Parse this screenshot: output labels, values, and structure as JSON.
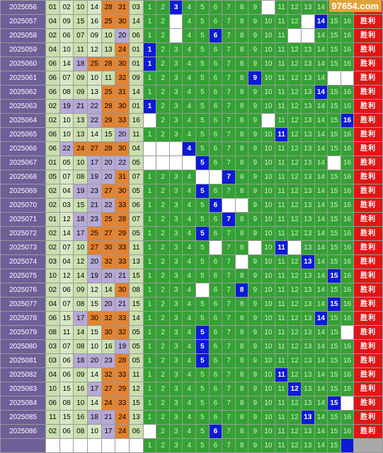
{
  "watermark": "97654.com",
  "result_label": "胜利",
  "miss_grid": [
    1,
    2,
    3,
    4,
    5,
    6,
    7,
    8,
    9,
    10,
    11,
    12,
    13,
    14,
    15,
    16
  ],
  "rows": [
    {
      "issue": "2025056",
      "nums": [
        "01",
        "02",
        "10",
        "14",
        "28",
        "31"
      ],
      "blue": "03",
      "hit": 3,
      "blanks": [
        10
      ]
    },
    {
      "issue": "2025057",
      "nums": [
        "04",
        "09",
        "15",
        "16",
        "25",
        "30"
      ],
      "blue": "14",
      "hit": 14,
      "blanks": [
        3,
        13
      ]
    },
    {
      "issue": "2025058",
      "nums": [
        "02",
        "06",
        "07",
        "09",
        "10",
        "20"
      ],
      "blue": "06",
      "hit": 6,
      "blanks": [
        3,
        12,
        13
      ]
    },
    {
      "issue": "2025059",
      "nums": [
        "04",
        "10",
        "11",
        "12",
        "13",
        "24"
      ],
      "blue": "01",
      "hit": 1,
      "blanks": []
    },
    {
      "issue": "2025060",
      "nums": [
        "06",
        "14",
        "18",
        "25",
        "28",
        "30"
      ],
      "blue": "01",
      "hit": 1,
      "blanks": []
    },
    {
      "issue": "2025061",
      "nums": [
        "06",
        "07",
        "09",
        "10",
        "11",
        "32"
      ],
      "blue": "09",
      "hit": 9,
      "blanks": [
        15,
        16
      ]
    },
    {
      "issue": "2025062",
      "nums": [
        "06",
        "08",
        "09",
        "13",
        "25",
        "31"
      ],
      "blue": "14",
      "hit": 14,
      "blanks": []
    },
    {
      "issue": "2025063",
      "nums": [
        "02",
        "19",
        "21",
        "22",
        "28",
        "30"
      ],
      "blue": "01",
      "hit": 1,
      "blanks": []
    },
    {
      "issue": "2025064",
      "nums": [
        "02",
        "10",
        "13",
        "22",
        "29",
        "33"
      ],
      "blue": "16",
      "hit": 16,
      "blanks": [
        1,
        10
      ]
    },
    {
      "issue": "2025065",
      "nums": [
        "06",
        "10",
        "13",
        "14",
        "15",
        "20"
      ],
      "blue": "11",
      "hit": 11,
      "blanks": []
    },
    {
      "issue": "2025066",
      "nums": [
        "06",
        "22",
        "24",
        "27",
        "28",
        "30"
      ],
      "blue": "04",
      "hit": 4,
      "blanks": [
        1,
        2,
        3
      ]
    },
    {
      "issue": "2025067",
      "nums": [
        "01",
        "05",
        "10",
        "17",
        "20",
        "22"
      ],
      "blue": "05",
      "hit": 5,
      "blanks": [
        1,
        2,
        3,
        4,
        15
      ]
    },
    {
      "issue": "2025068",
      "nums": [
        "05",
        "07",
        "08",
        "19",
        "20",
        "31"
      ],
      "blue": "07",
      "hit": 7,
      "blanks": [
        5,
        6
      ]
    },
    {
      "issue": "2025069",
      "nums": [
        "02",
        "04",
        "19",
        "23",
        "27",
        "30"
      ],
      "blue": "05",
      "hit": 5,
      "blanks": []
    },
    {
      "issue": "2025070",
      "nums": [
        "02",
        "03",
        "15",
        "21",
        "22",
        "33"
      ],
      "blue": "06",
      "hit": 6,
      "blanks": [
        7,
        8
      ]
    },
    {
      "issue": "2025071",
      "nums": [
        "01",
        "12",
        "18",
        "23",
        "25",
        "28"
      ],
      "blue": "07",
      "hit": 7,
      "blanks": []
    },
    {
      "issue": "2025072",
      "nums": [
        "02",
        "14",
        "17",
        "25",
        "27",
        "29"
      ],
      "blue": "05",
      "hit": 5,
      "blanks": []
    },
    {
      "issue": "2025073",
      "nums": [
        "02",
        "07",
        "10",
        "27",
        "30",
        "33"
      ],
      "blue": "11",
      "hit": 11,
      "blanks": [
        6,
        9,
        12
      ]
    },
    {
      "issue": "2025074",
      "nums": [
        "03",
        "04",
        "12",
        "20",
        "32",
        "33"
      ],
      "blue": "13",
      "hit": 13,
      "blanks": [
        8
      ]
    },
    {
      "issue": "2025075",
      "nums": [
        "10",
        "12",
        "14",
        "19",
        "20",
        "21"
      ],
      "blue": "15",
      "hit": 15,
      "blanks": []
    },
    {
      "issue": "2025076",
      "nums": [
        "02",
        "06",
        "09",
        "12",
        "14",
        "30"
      ],
      "blue": "08",
      "hit": 8,
      "blanks": [
        5
      ]
    },
    {
      "issue": "2025077",
      "nums": [
        "04",
        "07",
        "08",
        "15",
        "20",
        "21"
      ],
      "blue": "15",
      "hit": 15,
      "blanks": []
    },
    {
      "issue": "2025078",
      "nums": [
        "06",
        "15",
        "17",
        "30",
        "32",
        "33"
      ],
      "blue": "14",
      "hit": 14,
      "blanks": []
    },
    {
      "issue": "2025079",
      "nums": [
        "08",
        "11",
        "14",
        "15",
        "30",
        "32"
      ],
      "blue": "05",
      "hit": 5,
      "blanks": [
        16
      ]
    },
    {
      "issue": "2025080",
      "nums": [
        "03",
        "07",
        "08",
        "10",
        "16",
        "19"
      ],
      "blue": "05",
      "hit": 5,
      "blanks": []
    },
    {
      "issue": "2025081",
      "nums": [
        "03",
        "06",
        "18",
        "20",
        "23",
        "28"
      ],
      "blue": "05",
      "hit": 5,
      "blanks": []
    },
    {
      "issue": "2025082",
      "nums": [
        "04",
        "06",
        "09",
        "14",
        "32",
        "33"
      ],
      "blue": "11",
      "hit": 11,
      "blanks": []
    },
    {
      "issue": "2025083",
      "nums": [
        "10",
        "15",
        "16",
        "17",
        "27",
        "29"
      ],
      "blue": "12",
      "hit": 12,
      "blanks": []
    },
    {
      "issue": "2025084",
      "nums": [
        "06",
        "08",
        "10",
        "14",
        "24",
        "33"
      ],
      "blue": "15",
      "hit": 15,
      "blanks": [
        16
      ]
    },
    {
      "issue": "2025085",
      "nums": [
        "11",
        "15",
        "16",
        "18",
        "21",
        "24"
      ],
      "blue": "13",
      "hit": 13,
      "blanks": []
    },
    {
      "issue": "2025086",
      "nums": [
        "02",
        "06",
        "08",
        "10",
        "17",
        "24"
      ],
      "blue": "06",
      "hit": 6,
      "blanks": [
        1
      ]
    }
  ],
  "footer": {
    "hit": 16
  }
}
